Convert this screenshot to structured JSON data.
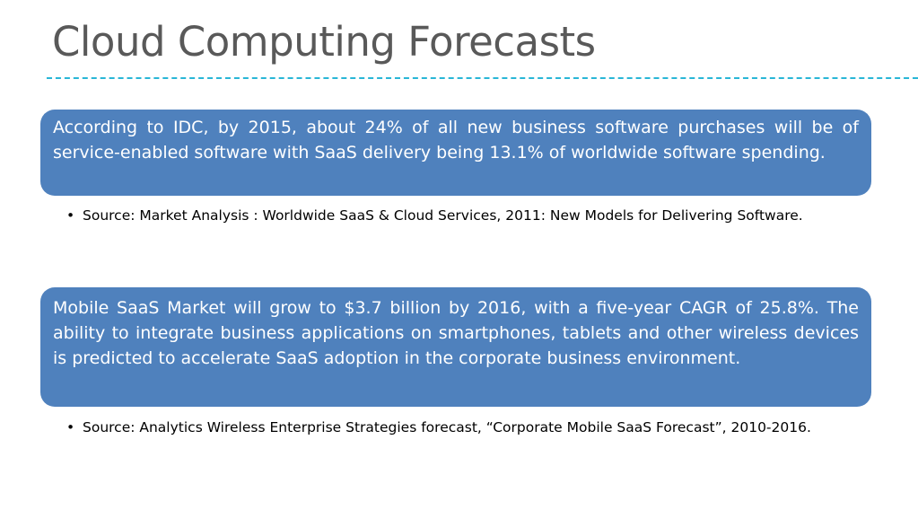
{
  "slide": {
    "title": "Cloud Computing Forecasts"
  },
  "callouts": [
    {
      "text": "According to IDC, by 2015, about 24% of all new business software purchases will be of service-enabled software with SaaS delivery being 13.1% of worldwide software spending.",
      "source": "Source: Market Analysis : Worldwide SaaS & Cloud Services, 2011: New Models for Delivering Software."
    },
    {
      "text": "Mobile SaaS Market will grow to $3.7 billion by 2016, with a five-year CAGR of 25.8%. The ability to integrate business applications on smartphones, tablets and other wireless devices is predicted to accelerate SaaS adoption in the corporate business environment.",
      "source": "Source: Analytics Wireless Enterprise Strategies forecast, “Corporate Mobile SaaS Forecast”, 2010-2016."
    }
  ],
  "bullet_char": "•",
  "colors": {
    "callout_fill": "#4f81bd",
    "title_text": "#595959",
    "divider": "#29b6d6"
  }
}
